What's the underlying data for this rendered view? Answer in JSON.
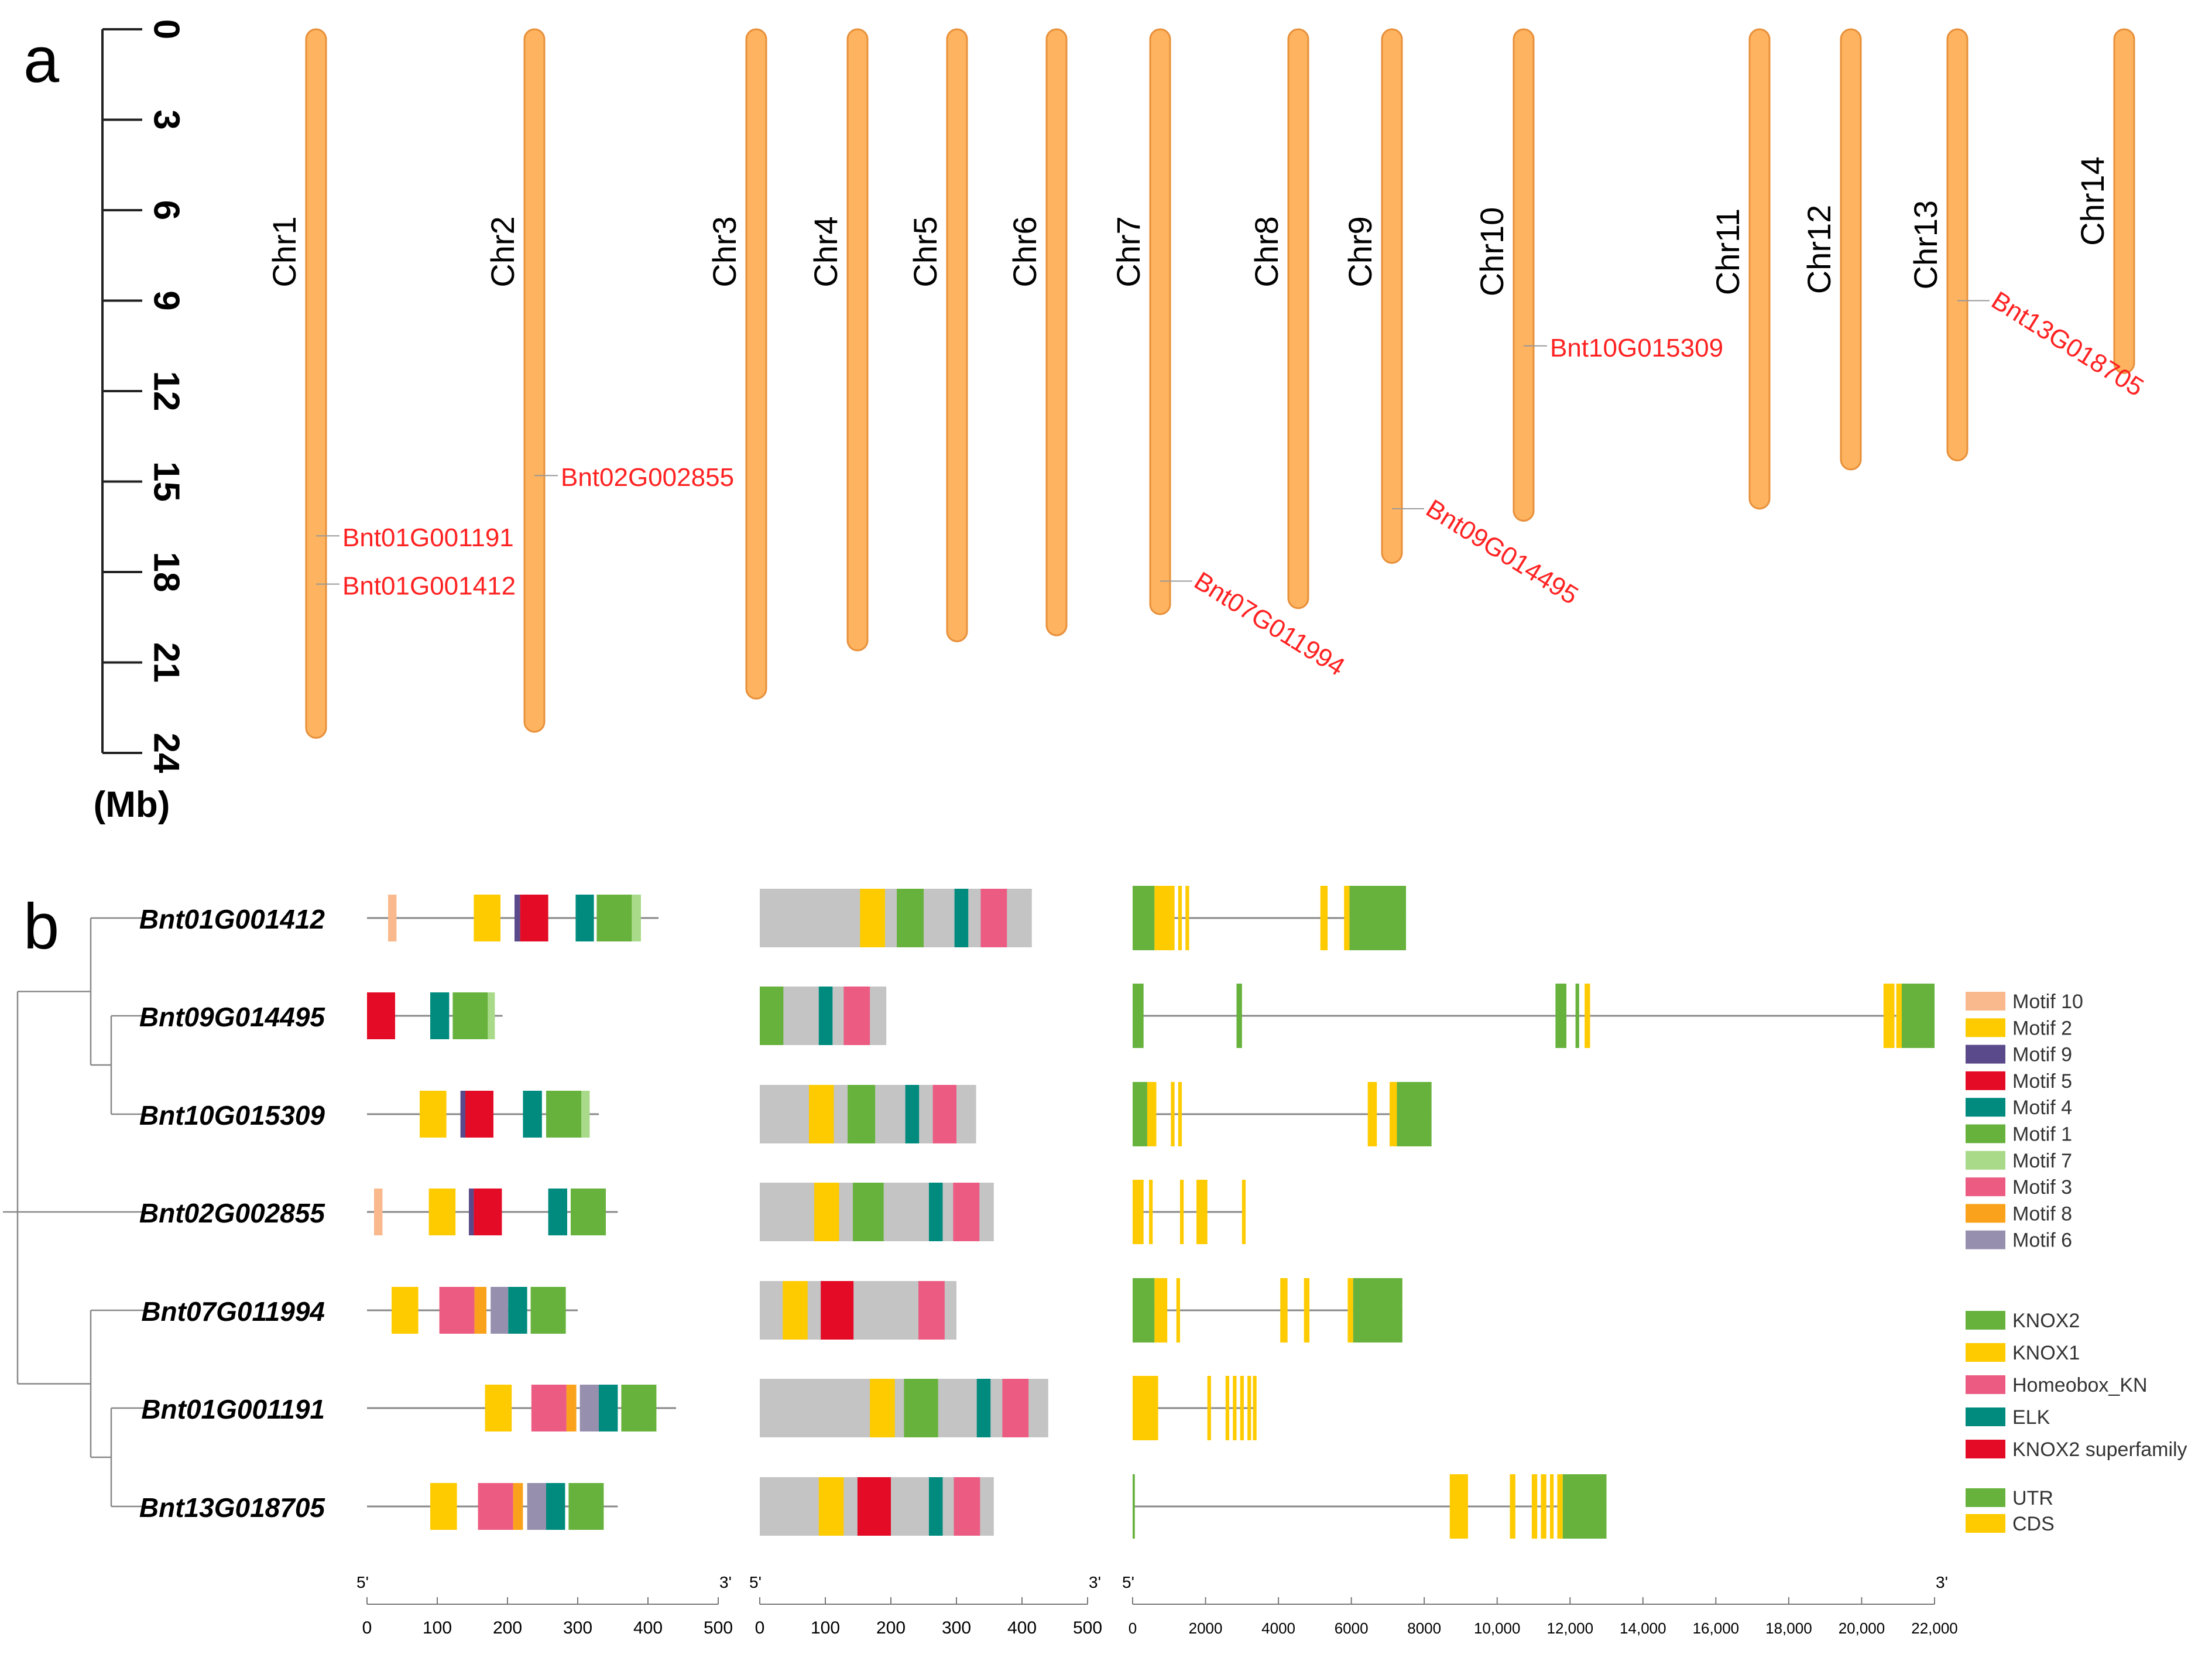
{
  "panel_a": {
    "label": "a",
    "axis": {
      "ticks": [
        "0",
        "3",
        "6",
        "9",
        "12",
        "15",
        "18",
        "21",
        "24"
      ],
      "tick_values_mb": [
        0,
        3,
        6,
        9,
        12,
        15,
        18,
        21,
        24
      ],
      "unit_label": "(Mb)"
    },
    "bar_color": "#FDB35F",
    "bar_edge_color": "#E8903A",
    "gene_label_color": "#FF2222",
    "chromosomes": [
      {
        "name": "Chr1",
        "length_mb": 23.5
      },
      {
        "name": "Chr2",
        "length_mb": 23.3
      },
      {
        "name": "Chr3",
        "length_mb": 22.2
      },
      {
        "name": "Chr4",
        "length_mb": 20.6
      },
      {
        "name": "Chr5",
        "length_mb": 20.3
      },
      {
        "name": "Chr6",
        "length_mb": 20.1
      },
      {
        "name": "Chr7",
        "length_mb": 19.4
      },
      {
        "name": "Chr8",
        "length_mb": 19.2
      },
      {
        "name": "Chr9",
        "length_mb": 17.7
      },
      {
        "name": "Chr10",
        "length_mb": 16.3
      },
      {
        "name": "Chr11",
        "length_mb": 15.9
      },
      {
        "name": "Chr12",
        "length_mb": 14.6
      },
      {
        "name": "Chr13",
        "length_mb": 14.3
      },
      {
        "name": "Chr14",
        "length_mb": 11.4
      }
    ],
    "genes": [
      {
        "name": "Bnt01G001191",
        "chr": "Chr1",
        "pos_mb": 16.8
      },
      {
        "name": "Bnt01G001412",
        "chr": "Chr1",
        "pos_mb": 18.4
      },
      {
        "name": "Bnt02G002855",
        "chr": "Chr2",
        "pos_mb": 14.8
      },
      {
        "name": "Bnt07G011994",
        "chr": "Chr7",
        "pos_mb": 18.3
      },
      {
        "name": "Bnt09G014495",
        "chr": "Chr9",
        "pos_mb": 15.9
      },
      {
        "name": "Bnt10G015309",
        "chr": "Chr10",
        "pos_mb": 10.5
      },
      {
        "name": "Bnt13G018705",
        "chr": "Chr13",
        "pos_mb": 9.0
      }
    ]
  },
  "panel_b": {
    "label": "b",
    "genes": [
      "Bnt01G001412",
      "Bnt09G014495",
      "Bnt10G015309",
      "Bnt02G002855",
      "Bnt07G011994",
      "Bnt01G001191",
      "Bnt13G018705"
    ],
    "colors": {
      "Motif 10": "#F9B98D",
      "Motif 2": "#FECB00",
      "Motif 9": "#5B4A8B",
      "Motif 5": "#E30B25",
      "Motif 4": "#008B7E",
      "Motif 1": "#66B23C",
      "Motif 7": "#A8DA8A",
      "Motif 3": "#EC5B82",
      "Motif 8": "#FAA21B",
      "Motif 6": "#978FAE",
      "KNOX2": "#66B23C",
      "KNOX1": "#FECB00",
      "Homeobox_KN": "#EC5B82",
      "ELK": "#008B7E",
      "KNOX2 superfamily": "#E30B25",
      "UTR": "#66B23C",
      "CDS": "#FECB00",
      "protein_bg": "#C4C4C4",
      "line": "#888888"
    },
    "legend_motifs": [
      "Motif 10",
      "Motif 2",
      "Motif 9",
      "Motif 5",
      "Motif 4",
      "Motif 1",
      "Motif 7",
      "Motif 3",
      "Motif 8",
      "Motif 6"
    ],
    "legend_domains": [
      "KNOX2",
      "KNOX1",
      "Homeobox_KN",
      "ELK",
      "KNOX2 superfamily"
    ],
    "legend_structure": [
      "UTR",
      "CDS"
    ],
    "motif_tracks": [
      {
        "length": 415,
        "motifs": [
          [
            "Motif 10",
            30,
            42
          ],
          [
            "Motif 2",
            152,
            190
          ],
          [
            "Motif 9",
            210,
            218
          ],
          [
            "Motif 5",
            218,
            258
          ],
          [
            "Motif 4",
            297,
            323
          ],
          [
            "Motif 1",
            327,
            377
          ],
          [
            "Motif 7",
            377,
            390
          ]
        ]
      },
      {
        "length": 193,
        "motifs": [
          [
            "Motif 5",
            0,
            40
          ],
          [
            "Motif 4",
            90,
            117
          ],
          [
            "Motif 1",
            122,
            172
          ],
          [
            "Motif 7",
            172,
            182
          ]
        ]
      },
      {
        "length": 330,
        "motifs": [
          [
            "Motif 2",
            75,
            113
          ],
          [
            "Motif 9",
            133,
            140
          ],
          [
            "Motif 5",
            140,
            180
          ],
          [
            "Motif 4",
            222,
            249
          ],
          [
            "Motif 1",
            255,
            305
          ],
          [
            "Motif 7",
            305,
            317
          ]
        ]
      },
      {
        "length": 357,
        "motifs": [
          [
            "Motif 10",
            10,
            22
          ],
          [
            "Motif 2",
            88,
            126
          ],
          [
            "Motif 9",
            145,
            152
          ],
          [
            "Motif 5",
            152,
            192
          ],
          [
            "Motif 4",
            258,
            285
          ],
          [
            "Motif 1",
            290,
            340
          ]
        ]
      },
      {
        "length": 300,
        "motifs": [
          [
            "Motif 2",
            35,
            73
          ],
          [
            "Motif 3",
            103,
            153
          ],
          [
            "Motif 8",
            153,
            170
          ],
          [
            "Motif 6",
            176,
            201
          ],
          [
            "Motif 4",
            201,
            228
          ],
          [
            "Motif 1",
            233,
            283
          ]
        ]
      },
      {
        "length": 440,
        "motifs": [
          [
            "Motif 2",
            168,
            206
          ],
          [
            "Motif 3",
            234,
            284
          ],
          [
            "Motif 8",
            284,
            298
          ],
          [
            "Motif 6",
            303,
            330
          ],
          [
            "Motif 4",
            330,
            357
          ],
          [
            "Motif 1",
            362,
            412
          ]
        ]
      },
      {
        "length": 357,
        "motifs": [
          [
            "Motif 2",
            90,
            128
          ],
          [
            "Motif 3",
            158,
            208
          ],
          [
            "Motif 8",
            208,
            222
          ],
          [
            "Motif 6",
            228,
            255
          ],
          [
            "Motif 4",
            255,
            282
          ],
          [
            "Motif 1",
            287,
            337
          ]
        ]
      }
    ],
    "domain_tracks": [
      {
        "length": 415,
        "domains": [
          [
            "KNOX1",
            153,
            191
          ],
          [
            "KNOX2",
            209,
            250
          ],
          [
            "ELK",
            297,
            318
          ],
          [
            "Homeobox_KN",
            337,
            377
          ]
        ]
      },
      {
        "length": 193,
        "domains": [
          [
            "KNOX2",
            0,
            36
          ],
          [
            "ELK",
            90,
            111
          ],
          [
            "Homeobox_KN",
            128,
            168
          ]
        ]
      },
      {
        "length": 330,
        "domains": [
          [
            "KNOX1",
            75,
            113
          ],
          [
            "KNOX2",
            134,
            176
          ],
          [
            "ELK",
            222,
            243
          ],
          [
            "Homeobox_KN",
            264,
            300
          ]
        ]
      },
      {
        "length": 357,
        "domains": [
          [
            "KNOX1",
            83,
            121
          ],
          [
            "KNOX2",
            142,
            189
          ],
          [
            "ELK",
            258,
            279
          ],
          [
            "Homeobox_KN",
            295,
            335
          ]
        ]
      },
      {
        "length": 300,
        "domains": [
          [
            "KNOX1",
            35,
            73
          ],
          [
            "KNOX2 superfamily",
            93,
            143
          ],
          [
            "Homeobox_KN",
            242,
            282
          ]
        ]
      },
      {
        "length": 440,
        "domains": [
          [
            "KNOX1",
            168,
            206
          ],
          [
            "KNOX2",
            220,
            272
          ],
          [
            "ELK",
            331,
            352
          ],
          [
            "Homeobox_KN",
            370,
            410
          ]
        ]
      },
      {
        "length": 357,
        "domains": [
          [
            "KNOX1",
            90,
            128
          ],
          [
            "KNOX2 superfamily",
            149,
            200
          ],
          [
            "ELK",
            258,
            279
          ],
          [
            "Homeobox_KN",
            296,
            336
          ]
        ]
      }
    ],
    "structure_tracks": [
      {
        "length": 7500,
        "features": [
          [
            "UTR",
            0,
            600
          ],
          [
            "CDS",
            600,
            1150
          ],
          [
            "CDS",
            1250,
            1350
          ],
          [
            "CDS",
            1450,
            1550
          ],
          [
            "CDS",
            5150,
            5350
          ],
          [
            "CDS",
            5800,
            5950
          ],
          [
            "UTR",
            5950,
            7500
          ]
        ]
      },
      {
        "length": 22000,
        "features": [
          [
            "UTR",
            0,
            300
          ],
          [
            "UTR",
            2850,
            3000
          ],
          [
            "UTR",
            11600,
            11900
          ],
          [
            "UTR",
            12150,
            12250
          ],
          [
            "CDS",
            12400,
            12550
          ],
          [
            "CDS",
            20600,
            20900
          ],
          [
            "CDS",
            20950,
            21100
          ],
          [
            "UTR",
            21100,
            22000
          ]
        ]
      },
      {
        "length": 8200,
        "features": [
          [
            "UTR",
            0,
            400
          ],
          [
            "CDS",
            400,
            650
          ],
          [
            "CDS",
            1050,
            1150
          ],
          [
            "CDS",
            1250,
            1350
          ],
          [
            "CDS",
            6450,
            6700
          ],
          [
            "CDS",
            7050,
            7250
          ],
          [
            "UTR",
            7250,
            8200
          ]
        ]
      },
      {
        "length": 3100,
        "features": [
          [
            "CDS",
            0,
            300
          ],
          [
            "CDS",
            450,
            550
          ],
          [
            "CDS",
            1300,
            1400
          ],
          [
            "CDS",
            1750,
            2050
          ],
          [
            "CDS",
            3000,
            3100
          ]
        ]
      },
      {
        "length": 7400,
        "features": [
          [
            "UTR",
            0,
            600
          ],
          [
            "CDS",
            600,
            950
          ],
          [
            "CDS",
            1200,
            1300
          ],
          [
            "CDS",
            4050,
            4250
          ],
          [
            "CDS",
            4700,
            4850
          ],
          [
            "CDS",
            5900,
            6050
          ],
          [
            "UTR",
            6050,
            7400
          ]
        ]
      },
      {
        "length": 3400,
        "features": [
          [
            "CDS",
            0,
            700
          ],
          [
            "CDS",
            2050,
            2150
          ],
          [
            "CDS",
            2550,
            2650
          ],
          [
            "CDS",
            2750,
            2850
          ],
          [
            "CDS",
            2950,
            3050
          ],
          [
            "CDS",
            3150,
            3250
          ],
          [
            "CDS",
            3300,
            3400
          ]
        ]
      },
      {
        "length": 13000,
        "features": [
          [
            "UTR",
            0,
            60
          ],
          [
            "CDS",
            8700,
            9200
          ],
          [
            "CDS",
            10350,
            10500
          ],
          [
            "CDS",
            10950,
            11100
          ],
          [
            "CDS",
            11200,
            11350
          ],
          [
            "CDS",
            11450,
            11550
          ],
          [
            "CDS",
            11650,
            11800
          ],
          [
            "UTR",
            11800,
            13000
          ]
        ]
      }
    ],
    "scale_motif": {
      "ticks": [
        "0",
        "100",
        "200",
        "300",
        "400",
        "500"
      ],
      "values": [
        0,
        100,
        200,
        300,
        400,
        500
      ],
      "start": "5'",
      "end": "3'"
    },
    "scale_domain": {
      "ticks": [
        "0",
        "100",
        "200",
        "300",
        "400",
        "500"
      ],
      "values": [
        0,
        100,
        200,
        300,
        400,
        500
      ],
      "start": "5'",
      "end": "3'"
    },
    "scale_structure": {
      "ticks": [
        "0",
        "2000",
        "4000",
        "6000",
        "8000",
        "10,000",
        "12,000",
        "14,000",
        "16,000",
        "18,000",
        "20,000",
        "22,000"
      ],
      "values": [
        0,
        2000,
        4000,
        6000,
        8000,
        10000,
        12000,
        14000,
        16000,
        18000,
        20000,
        22000
      ],
      "start": "5'",
      "end": "3'"
    }
  }
}
